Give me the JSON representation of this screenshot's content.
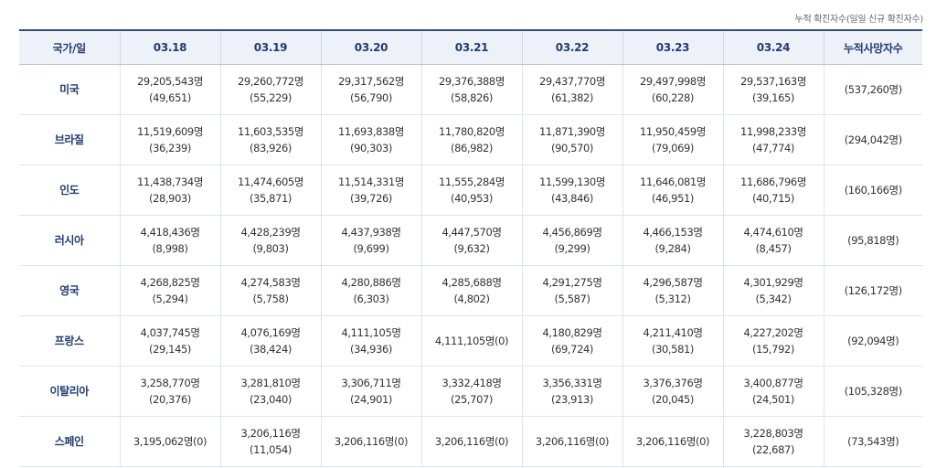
{
  "caption": "누적 확진자수(일일 신규 확진자수)",
  "headers": [
    "국가/일",
    "03.18",
    "03.19",
    "03.20",
    "03.21",
    "03.22",
    "03.23",
    "03.24",
    "누적사망자수"
  ],
  "rows": [
    {
      "country": "미국",
      "cells": [
        {
          "total": "29,205,543명",
          "new": "(49,651)"
        },
        {
          "total": "29,260,772명",
          "new": "(55,229)"
        },
        {
          "total": "29,317,562명",
          "new": "(56,790)"
        },
        {
          "total": "29,376,388명",
          "new": "(58,826)"
        },
        {
          "total": "29,437,770명",
          "new": "(61,382)"
        },
        {
          "total": "29,497,998명",
          "new": "(60,228)"
        },
        {
          "total": "29,537,163명",
          "new": "(39,165)"
        }
      ],
      "deaths": "(537,260명)"
    },
    {
      "country": "브라질",
      "cells": [
        {
          "total": "11,519,609명",
          "new": "(36,239)"
        },
        {
          "total": "11,603,535명",
          "new": "(83,926)"
        },
        {
          "total": "11,693,838명",
          "new": "(90,303)"
        },
        {
          "total": "11,780,820명",
          "new": "(86,982)"
        },
        {
          "total": "11,871,390명",
          "new": "(90,570)"
        },
        {
          "total": "11,950,459명",
          "new": "(79,069)"
        },
        {
          "total": "11,998,233명",
          "new": "(47,774)"
        }
      ],
      "deaths": "(294,042명)"
    },
    {
      "country": "인도",
      "cells": [
        {
          "total": "11,438,734명",
          "new": "(28,903)"
        },
        {
          "total": "11,474,605명",
          "new": "(35,871)"
        },
        {
          "total": "11,514,331명",
          "new": "(39,726)"
        },
        {
          "total": "11,555,284명",
          "new": "(40,953)"
        },
        {
          "total": "11,599,130명",
          "new": "(43,846)"
        },
        {
          "total": "11,646,081명",
          "new": "(46,951)"
        },
        {
          "total": "11,686,796명",
          "new": "(40,715)"
        }
      ],
      "deaths": "(160,166명)"
    },
    {
      "country": "러시아",
      "cells": [
        {
          "total": "4,418,436명",
          "new": "(8,998)"
        },
        {
          "total": "4,428,239명",
          "new": "(9,803)"
        },
        {
          "total": "4,437,938명",
          "new": "(9,699)"
        },
        {
          "total": "4,447,570명",
          "new": "(9,632)"
        },
        {
          "total": "4,456,869명",
          "new": "(9,299)"
        },
        {
          "total": "4,466,153명",
          "new": "(9,284)"
        },
        {
          "total": "4,474,610명",
          "new": "(8,457)"
        }
      ],
      "deaths": "(95,818명)"
    },
    {
      "country": "영국",
      "cells": [
        {
          "total": "4,268,825명",
          "new": "(5,294)"
        },
        {
          "total": "4,274,583명",
          "new": "(5,758)"
        },
        {
          "total": "4,280,886명",
          "new": "(6,303)"
        },
        {
          "total": "4,285,688명",
          "new": "(4,802)"
        },
        {
          "total": "4,291,275명",
          "new": "(5,587)"
        },
        {
          "total": "4,296,587명",
          "new": "(5,312)"
        },
        {
          "total": "4,301,929명",
          "new": "(5,342)"
        }
      ],
      "deaths": "(126,172명)"
    },
    {
      "country": "프랑스",
      "cells": [
        {
          "total": "4,037,745명",
          "new": "(29,145)"
        },
        {
          "total": "4,076,169명",
          "new": "(38,424)"
        },
        {
          "total": "4,111,105명",
          "new": "(34,936)"
        },
        {
          "total": "4,111,105명(0)",
          "new": ""
        },
        {
          "total": "4,180,829명",
          "new": "(69,724)"
        },
        {
          "total": "4,211,410명",
          "new": "(30,581)"
        },
        {
          "total": "4,227,202명",
          "new": "(15,792)"
        }
      ],
      "deaths": "(92,094명)"
    },
    {
      "country": "이탈리아",
      "cells": [
        {
          "total": "3,258,770명",
          "new": "(20,376)"
        },
        {
          "total": "3,281,810명",
          "new": "(23,040)"
        },
        {
          "total": "3,306,711명",
          "new": "(24,901)"
        },
        {
          "total": "3,332,418명",
          "new": "(25,707)"
        },
        {
          "total": "3,356,331명",
          "new": "(23,913)"
        },
        {
          "total": "3,376,376명",
          "new": "(20,045)"
        },
        {
          "total": "3,400,877명",
          "new": "(24,501)"
        }
      ],
      "deaths": "(105,328명)"
    },
    {
      "country": "스페인",
      "cells": [
        {
          "total": "3,195,062명(0)",
          "new": ""
        },
        {
          "total": "3,206,116명",
          "new": "(11,054)"
        },
        {
          "total": "3,206,116명(0)",
          "new": ""
        },
        {
          "total": "3,206,116명(0)",
          "new": ""
        },
        {
          "total": "3,206,116명(0)",
          "new": ""
        },
        {
          "total": "3,206,116명(0)",
          "new": ""
        },
        {
          "total": "3,228,803명",
          "new": "(22,687)"
        }
      ],
      "deaths": "(73,543명)"
    }
  ]
}
